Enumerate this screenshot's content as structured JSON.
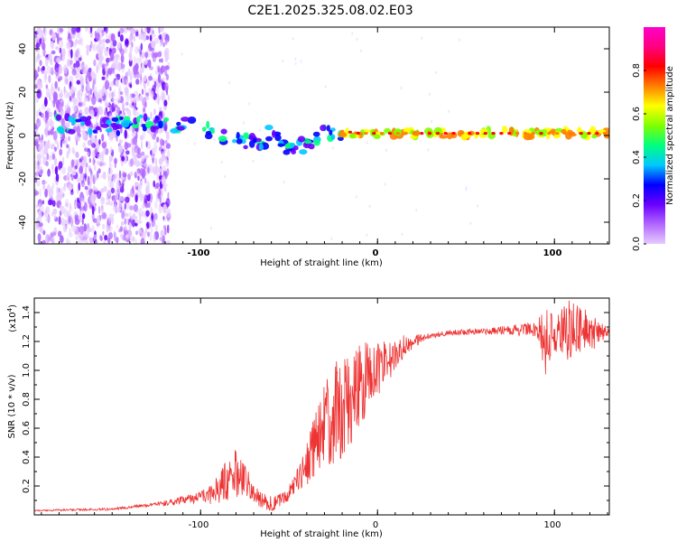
{
  "title": "C2E1.2025.325.08.02.E03",
  "chart_data": [
    {
      "type": "heatmap",
      "xlabel": "Height of straight line (km)",
      "ylabel": "Frequency (Hz)",
      "xlim": [
        -194,
        131
      ],
      "ylim": [
        -50,
        50
      ],
      "xticks": [
        -100,
        0,
        100
      ],
      "xtick_labels": [
        "-100",
        "0",
        "100"
      ],
      "yticks": [
        -40,
        -20,
        0,
        20,
        40
      ],
      "ytick_labels": [
        "-40",
        "-20",
        "0",
        "20",
        "40"
      ],
      "colorbar": {
        "label": "Normalized spectral amplitude",
        "range": [
          0,
          1
        ],
        "ticks": [
          0.0,
          0.2,
          0.4,
          0.6,
          0.8
        ],
        "tick_labels": [
          "0.0",
          "0.2",
          "0.4",
          "0.6",
          "0.8"
        ],
        "colors": [
          "#e6ccff",
          "#b266ff",
          "#6a00ff",
          "#0000ff",
          "#00c8ff",
          "#00ff7f",
          "#7fff00",
          "#ffff00",
          "#ff8000",
          "#ff0000",
          "#ff0080",
          "#ff00cc"
        ]
      },
      "ridge": {
        "x": [
          -170,
          -150,
          -130,
          -110,
          -95,
          -85,
          -75,
          -65,
          -60,
          -55,
          -50,
          -40,
          -30,
          -20,
          -10,
          0,
          20,
          60,
          100,
          131
        ],
        "freq": [
          5,
          4,
          6,
          5,
          2,
          0,
          -2,
          -6,
          3,
          -2,
          -6,
          -4,
          2,
          2,
          1,
          1,
          1,
          1,
          1,
          1
        ]
      }
    },
    {
      "type": "line",
      "xlabel": "Height of straight line (km)",
      "ylabel": "SNR (10 * v/v)",
      "scale_label": "(x10",
      "scale_exp": "4",
      "series_color": "#ee3333",
      "xlim": [
        -194,
        131
      ],
      "ylim": [
        0,
        1.5
      ],
      "xticks": [
        -100,
        0,
        100
      ],
      "xtick_labels": [
        "-100",
        "0",
        "100"
      ],
      "yticks": [
        0.2,
        0.4,
        0.6,
        0.8,
        1.0,
        1.2,
        1.4
      ],
      "ytick_labels": [
        "0.2",
        "0.4",
        "0.6",
        "0.8",
        "1.0",
        "1.2",
        "1.4"
      ],
      "trend": {
        "x": [
          -194,
          -150,
          -120,
          -100,
          -90,
          -80,
          -75,
          -70,
          -65,
          -60,
          -55,
          -50,
          -45,
          -40,
          -35,
          -30,
          -25,
          -20,
          -15,
          -10,
          -5,
          0,
          5,
          10,
          15,
          20,
          30,
          40,
          60,
          80,
          90,
          95,
          100,
          105,
          110,
          131
        ],
        "y": [
          0.03,
          0.04,
          0.08,
          0.12,
          0.18,
          0.3,
          0.25,
          0.14,
          0.1,
          0.08,
          0.1,
          0.15,
          0.25,
          0.35,
          0.5,
          0.6,
          0.7,
          0.75,
          0.82,
          0.9,
          0.95,
          1.0,
          1.05,
          1.1,
          1.17,
          1.2,
          1.24,
          1.26,
          1.27,
          1.28,
          1.28,
          1.22,
          1.25,
          1.28,
          1.25,
          1.27
        ]
      },
      "noise": {
        "x": [
          -194,
          -130,
          -100,
          -80,
          -70,
          -50,
          -40,
          -30,
          -20,
          -10,
          0,
          10,
          20,
          30,
          60,
          90,
          95,
          100,
          110,
          131
        ],
        "amp": [
          0.005,
          0.01,
          0.04,
          0.18,
          0.06,
          0.05,
          0.15,
          0.3,
          0.4,
          0.3,
          0.2,
          0.1,
          0.05,
          0.02,
          0.02,
          0.05,
          0.25,
          0.12,
          0.25,
          0.02
        ]
      }
    }
  ]
}
